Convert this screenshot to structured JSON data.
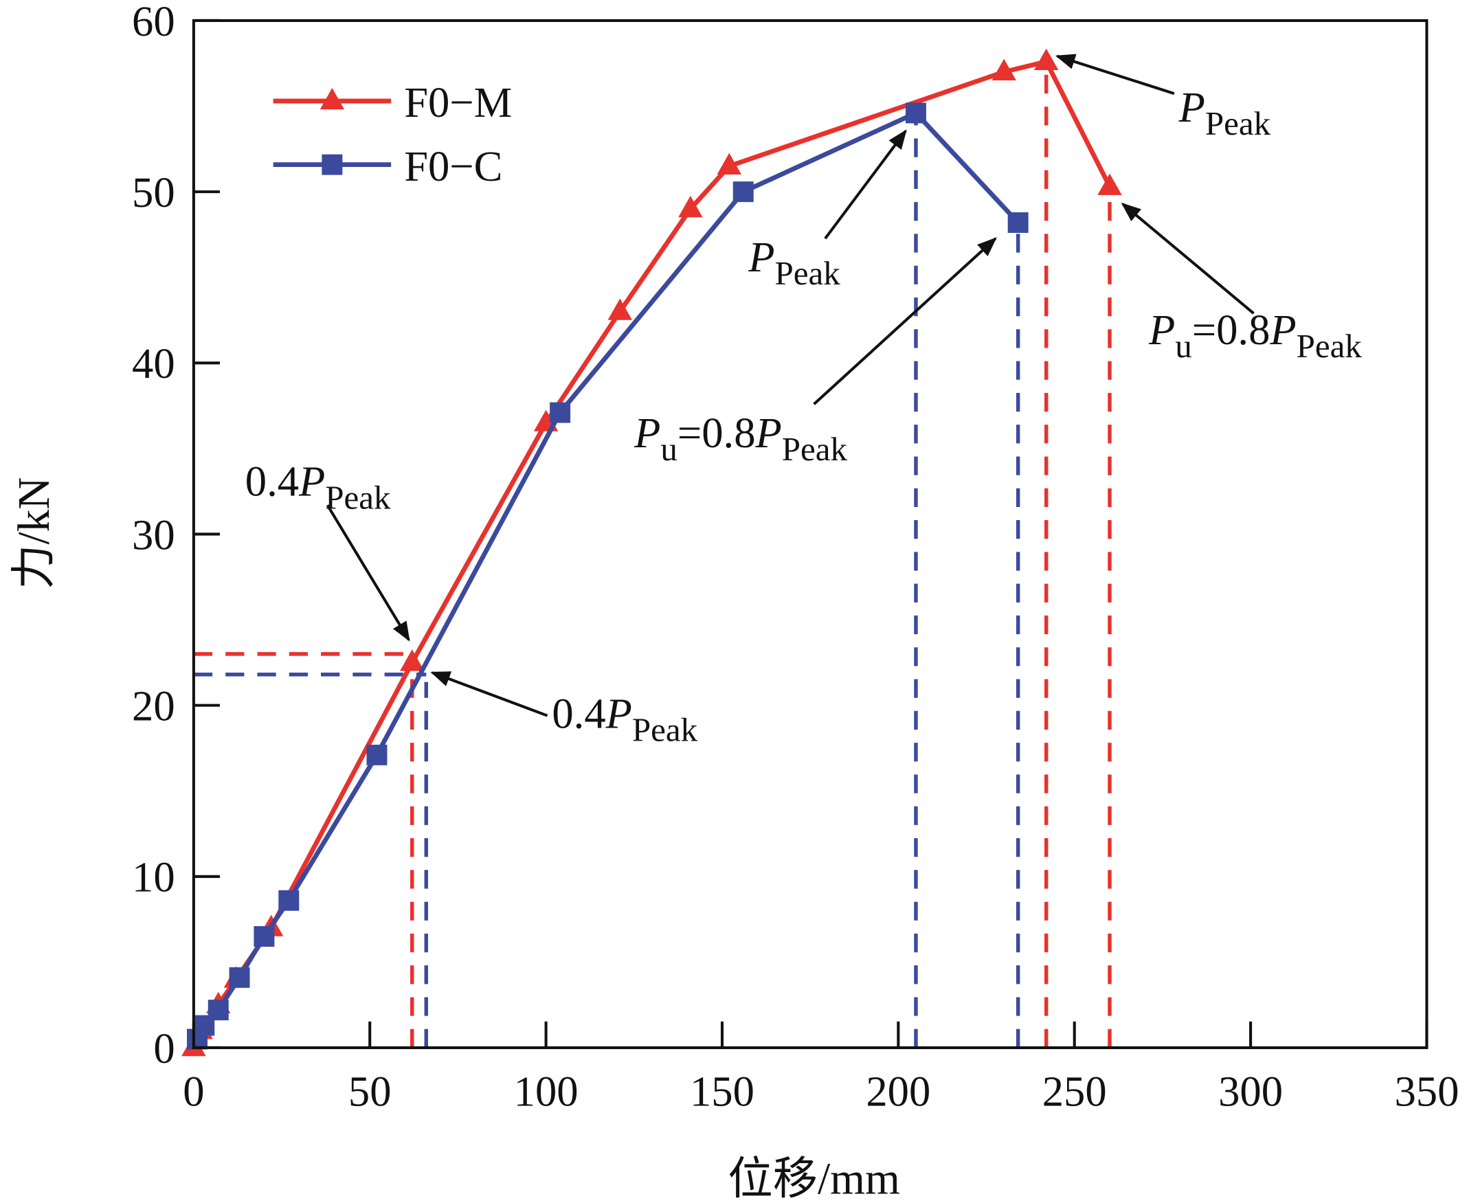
{
  "chart_data": {
    "type": "line",
    "title": "",
    "xlabel": "位移/mm",
    "ylabel": "力/kN",
    "xlim": [
      0,
      350
    ],
    "ylim": [
      0,
      60
    ],
    "xticks": [
      0,
      50,
      100,
      150,
      200,
      250,
      300,
      350
    ],
    "yticks": [
      0,
      10,
      20,
      30,
      40,
      50,
      60
    ],
    "grid": false,
    "legend_position": "top-left",
    "series": [
      {
        "name": "F0−M",
        "color": "#e8322d",
        "marker": "triangle",
        "x": [
          0,
          2,
          7,
          12,
          22,
          62,
          100,
          121,
          141,
          152,
          230,
          242,
          260
        ],
        "y": [
          0,
          1.0,
          2.5,
          4.0,
          7.0,
          22.5,
          36.5,
          43.0,
          49.0,
          51.5,
          57.0,
          57.6,
          50.3
        ]
      },
      {
        "name": "F0−C",
        "color": "#3b4a9c",
        "marker": "square",
        "x": [
          1,
          3,
          7,
          13,
          20,
          27,
          52,
          104,
          156,
          205,
          234
        ],
        "y": [
          0.5,
          1.3,
          2.2,
          4.1,
          6.5,
          8.6,
          17.1,
          37.1,
          50.0,
          54.6,
          48.2
        ]
      }
    ],
    "reference_lines": [
      {
        "series": "F0−M",
        "kind": "0.4Ppeak",
        "x": 62,
        "y": 23.0
      },
      {
        "series": "F0−C",
        "kind": "0.4Ppeak",
        "x": 66,
        "y": 21.8
      },
      {
        "series": "F0−M",
        "kind": "Ppeak",
        "x": 242,
        "y": 57.6
      },
      {
        "series": "F0−M",
        "kind": "Pu",
        "x": 260,
        "y": 50.3
      },
      {
        "series": "F0−C",
        "kind": "Ppeak",
        "x": 205,
        "y": 54.6
      },
      {
        "series": "F0−C",
        "kind": "Pu",
        "x": 234,
        "y": 48.2
      }
    ],
    "annotations": {
      "p": "P",
      "peak": "Peak",
      "u": "u",
      "eq08": "=0.8",
      "pre04": "0.4"
    }
  }
}
